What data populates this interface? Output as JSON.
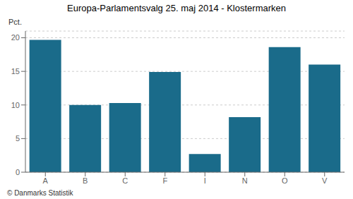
{
  "chart_data": {
    "type": "bar",
    "title": "Europa-Parlamentsvalg 25. maj 2014 - Klostermarken",
    "categories": [
      "A",
      "B",
      "C",
      "F",
      "I",
      "N",
      "O",
      "V"
    ],
    "values": [
      19.7,
      10.0,
      10.3,
      14.9,
      2.7,
      8.2,
      18.6,
      16.0
    ],
    "color": "#1a6b8a",
    "ylabel": "Pct.",
    "footer": "© Danmarks Statistik",
    "ylim": [
      0,
      21
    ],
    "yticks": [
      0,
      5,
      10,
      15,
      20
    ],
    "grid": true
  }
}
